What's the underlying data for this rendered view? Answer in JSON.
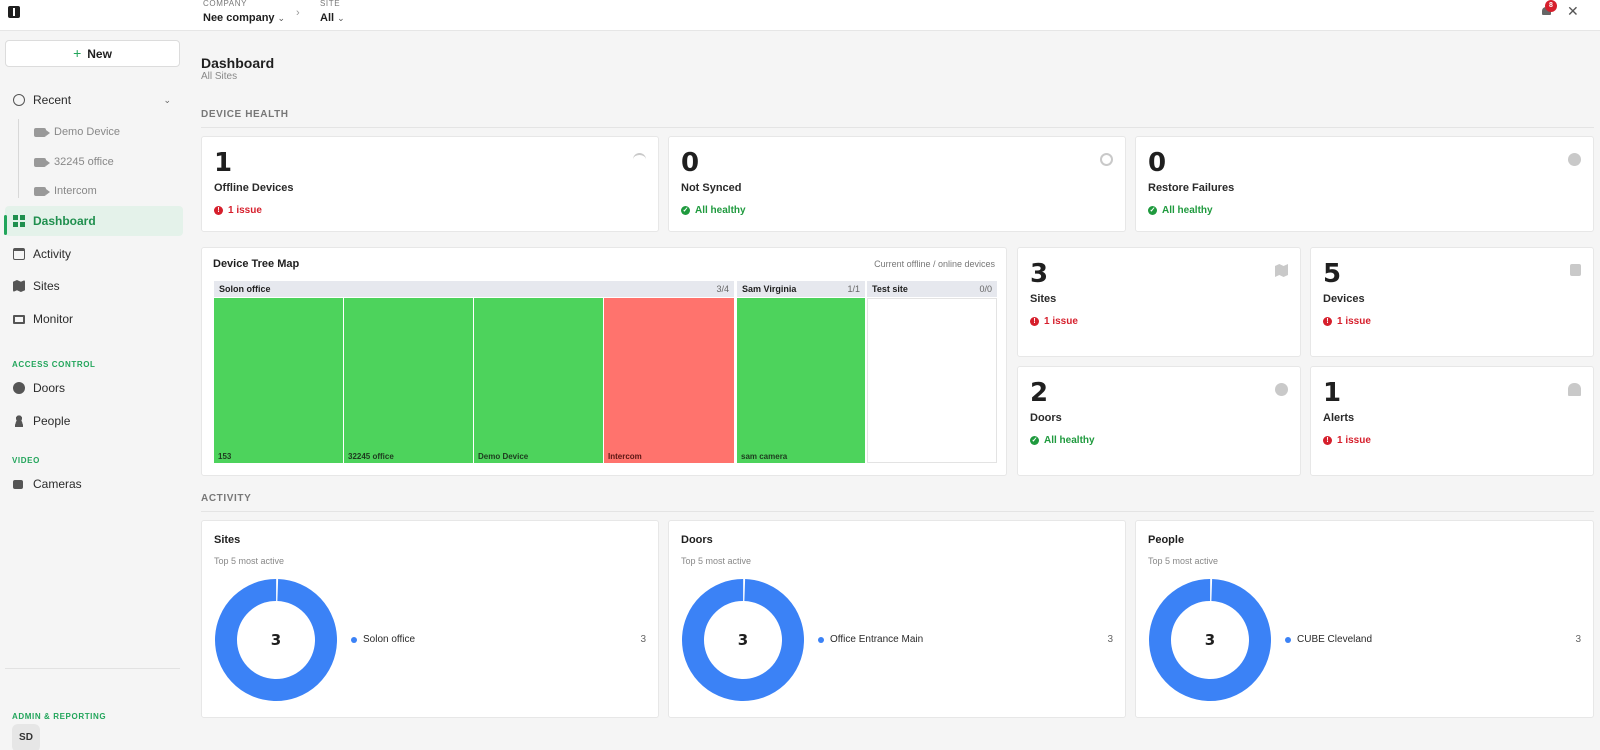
{
  "topbar": {
    "company_label": "COMPANY",
    "company_value": "Nee company",
    "site_label": "SITE",
    "site_value": "All",
    "notification_count": "8"
  },
  "sidebar": {
    "new_label": "New",
    "recent_label": "Recent",
    "recent_items": [
      "Demo Device",
      "32245 office",
      "Intercom"
    ],
    "nav": {
      "dashboard": "Dashboard",
      "activity": "Activity",
      "sites": "Sites",
      "monitor": "Monitor"
    },
    "access_control_heading": "ACCESS CONTROL",
    "access_control": {
      "doors": "Doors",
      "people": "People"
    },
    "video_heading": "VIDEO",
    "video": {
      "cameras": "Cameras"
    },
    "admin_heading": "ADMIN & REPORTING",
    "avatar_initials": "SD"
  },
  "page": {
    "title": "Dashboard",
    "subtitle": "All Sites",
    "device_health_heading": "DEVICE HEALTH",
    "activity_heading": "ACTIVITY"
  },
  "health_cards": [
    {
      "value": "1",
      "label": "Offline Devices",
      "status": "1 issue",
      "state": "bad",
      "icon": "wifi-off-icon"
    },
    {
      "value": "0",
      "label": "Not Synced",
      "status": "All healthy",
      "state": "good",
      "icon": "sync-icon"
    },
    {
      "value": "0",
      "label": "Restore Failures",
      "status": "All healthy",
      "state": "good",
      "icon": "alert-circle-icon"
    }
  ],
  "summary_cards": [
    {
      "value": "3",
      "label": "Sites",
      "status": "1 issue",
      "state": "bad",
      "icon": "map-icon"
    },
    {
      "value": "5",
      "label": "Devices",
      "status": "1 issue",
      "state": "bad",
      "icon": "devices-icon"
    },
    {
      "value": "2",
      "label": "Doors",
      "status": "All healthy",
      "state": "good",
      "icon": "door-icon"
    },
    {
      "value": "1",
      "label": "Alerts",
      "status": "1 issue",
      "state": "bad",
      "icon": "alarm-icon"
    }
  ],
  "treemap": {
    "title": "Device Tree Map",
    "caption": "Current offline / online devices",
    "groups": [
      {
        "name": "Solon office",
        "count": "3/4",
        "tiles": [
          {
            "label": "153",
            "online": true
          },
          {
            "label": "32245 office",
            "online": true
          },
          {
            "label": "Demo Device",
            "online": true
          },
          {
            "label": "Intercom",
            "online": false
          }
        ]
      },
      {
        "name": "Sam Virginia",
        "count": "1/1",
        "tiles": [
          {
            "label": "sam camera",
            "online": true
          }
        ]
      },
      {
        "name": "Test site",
        "count": "0/0",
        "tiles": []
      }
    ]
  },
  "activity_cards": [
    {
      "title": "Sites",
      "subtitle": "Top 5 most active",
      "total": "3",
      "legend": "Solon office",
      "legend_value": "3"
    },
    {
      "title": "Doors",
      "subtitle": "Top 5 most active",
      "total": "3",
      "legend": "Office Entrance Main",
      "legend_value": "3"
    },
    {
      "title": "People",
      "subtitle": "Top 5 most active",
      "total": "3",
      "legend": "CUBE Cleveland",
      "legend_value": "3"
    }
  ],
  "colors": {
    "accent": "#22a55b",
    "online": "#4dd35c",
    "offline": "#ff736d",
    "donut": "#3b82f6",
    "issue": "#d61f2c"
  }
}
